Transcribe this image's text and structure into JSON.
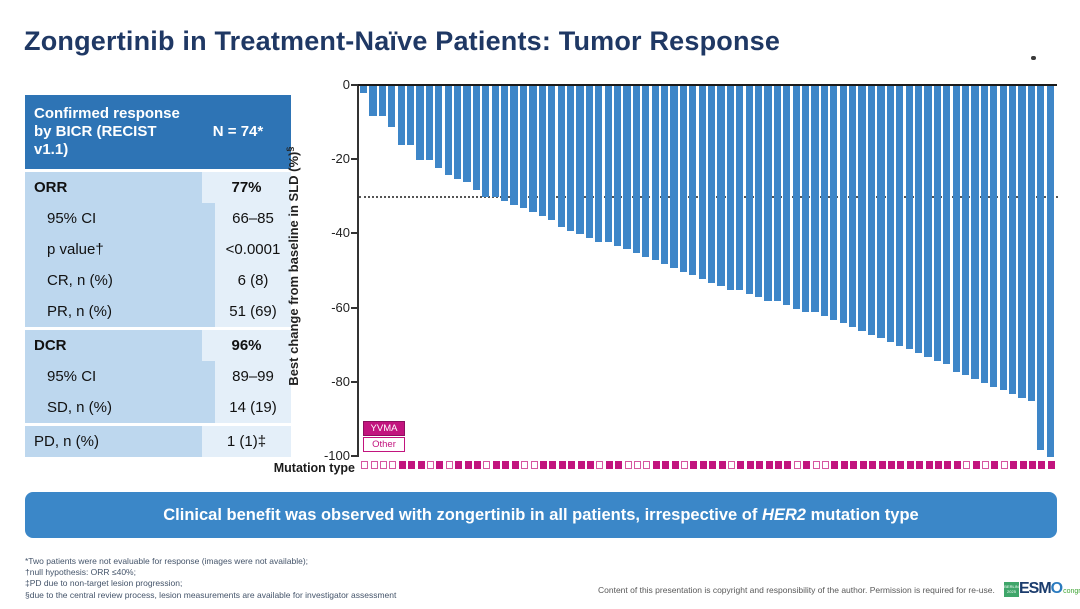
{
  "slide": {
    "title": "Zongertinib in Treatment-Naïve Patients: Tumor Response",
    "banner": {
      "prefix": "Clinical benefit was observed with zongertinib in all patients, irrespective of ",
      "italic": "HER2",
      "suffix": " mutation type"
    },
    "footnotes": [
      "*Two patients were not evaluable for response (images were not available);",
      "†null hypothesis: ORR ≤40%;",
      "‡PD due to non-target lesion progression;",
      "§due to the central review process, lesion measurements are available for investigator assessment"
    ],
    "copyright": "Content of this presentation is copyright and responsibility of the author. Permission is required for re-use.",
    "logo": {
      "badge": "BERLIN 2025",
      "name_dark": "ESM",
      "name_accent": "O",
      "suffix": "congress"
    },
    "colors": {
      "title_navy": "#1F3864",
      "table_header_blue": "#2E74B5",
      "table_label_bg": "#BDD7EE",
      "table_value_bg": "#E4EFF9",
      "bar_blue": "#3E86C8",
      "banner_blue": "#3B87C8",
      "mutation_magenta": "#C2147E"
    }
  },
  "table": {
    "header": {
      "label": "Confirmed response by BICR (RECIST v1.1)",
      "value": "N = 74*"
    },
    "rows": [
      {
        "label": "ORR",
        "value": "77%",
        "bold": true,
        "indent": false,
        "gap": false
      },
      {
        "label": "95% CI",
        "value": "66–85",
        "bold": false,
        "indent": true,
        "gap": false
      },
      {
        "label": "p value†",
        "value": "<0.0001",
        "bold": false,
        "indent": true,
        "gap": false
      },
      {
        "label": "CR, n (%)",
        "value": "6 (8)",
        "bold": false,
        "indent": true,
        "gap": false
      },
      {
        "label": "PR, n (%)",
        "value": "51 (69)",
        "bold": false,
        "indent": true,
        "gap": true
      },
      {
        "label": "DCR",
        "value": "96%",
        "bold": true,
        "indent": false,
        "gap": false
      },
      {
        "label": "95% CI",
        "value": "89–99",
        "bold": false,
        "indent": true,
        "gap": false
      },
      {
        "label": "SD, n (%)",
        "value": "14 (19)",
        "bold": false,
        "indent": true,
        "gap": true
      },
      {
        "label": "PD, n (%)",
        "value": "1 (1)‡",
        "bold": false,
        "indent": false,
        "gap": false
      }
    ]
  },
  "chart_data": {
    "type": "bar",
    "subtype": "waterfall",
    "title": "",
    "xlabel": "",
    "ylabel": "Best change from baseline in SLD (%)",
    "ylabel_sup": "§",
    "ylim": [
      -100,
      0
    ],
    "yticks": [
      0,
      -20,
      -40,
      -60,
      -80,
      -100
    ],
    "reference_line": -30,
    "grid": false,
    "bar_color": "#3E86C8",
    "n_bars": 74,
    "values": [
      -2,
      -8,
      -8,
      -11,
      -16,
      -16,
      -20,
      -20,
      -22,
      -24,
      -25,
      -26,
      -28,
      -30,
      -30,
      -31,
      -32,
      -33,
      -34,
      -35,
      -36,
      -38,
      -39,
      -40,
      -41,
      -42,
      -42,
      -43,
      -44,
      -45,
      -46,
      -47,
      -48,
      -49,
      -50,
      -51,
      -52,
      -53,
      -54,
      -55,
      -55,
      -56,
      -57,
      -58,
      -58,
      -59,
      -60,
      -61,
      -61,
      -62,
      -63,
      -64,
      -65,
      -66,
      -67,
      -68,
      -69,
      -70,
      -71,
      -72,
      -73,
      -74,
      -75,
      -77,
      -78,
      -79,
      -80,
      -81,
      -82,
      -83,
      -84,
      -85,
      -98,
      -100
    ],
    "mutation_type": [
      "Other",
      "Other",
      "Other",
      "Other",
      "YVMA",
      "YVMA",
      "YVMA",
      "Other",
      "YVMA",
      "Other",
      "YVMA",
      "YVMA",
      "YVMA",
      "Other",
      "YVMA",
      "YVMA",
      "YVMA",
      "Other",
      "Other",
      "YVMA",
      "YVMA",
      "YVMA",
      "YVMA",
      "YVMA",
      "YVMA",
      "Other",
      "YVMA",
      "YVMA",
      "Other",
      "Other",
      "Other",
      "YVMA",
      "YVMA",
      "YVMA",
      "Other",
      "YVMA",
      "YVMA",
      "YVMA",
      "YVMA",
      "Other",
      "YVMA",
      "YVMA",
      "YVMA",
      "YVMA",
      "YVMA",
      "YVMA",
      "Other",
      "YVMA",
      "Other",
      "Other",
      "YVMA",
      "YVMA",
      "YVMA",
      "YVMA",
      "YVMA",
      "YVMA",
      "YVMA",
      "YVMA",
      "YVMA",
      "YVMA",
      "YVMA",
      "YVMA",
      "YVMA",
      "YVMA",
      "Other",
      "YVMA",
      "Other",
      "YVMA",
      "Other",
      "YVMA",
      "YVMA",
      "YVMA",
      "YVMA",
      "YVMA"
    ],
    "legend": [
      {
        "label": "YVMA",
        "style": "filled",
        "color": "#C2147E"
      },
      {
        "label": "Other",
        "style": "open",
        "color": "#C2147E"
      }
    ],
    "legend_position": "lower-left",
    "axis_row_label": "Mutation type"
  }
}
